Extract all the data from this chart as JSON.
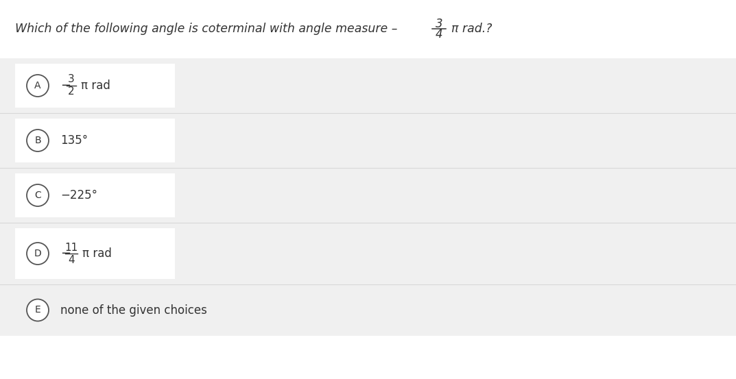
{
  "bg_color": "#ffffff",
  "row_bg_color": "#f0f0f0",
  "white_box_color": "#ffffff",
  "text_color": "#333333",
  "circle_bg": "#ffffff",
  "circle_edge": "#555555",
  "sep_color": "#d8d8d8",
  "question_main": "Which of the following angle is coterminal with angle measure –",
  "question_frac_num": "3",
  "question_frac_den": "4",
  "question_suffix": "π rad.?",
  "options": [
    {
      "label": "A",
      "type": "frac",
      "sign": "−",
      "num": "3",
      "den": "2",
      "suffix": "π rad"
    },
    {
      "label": "B",
      "type": "plain",
      "text": "135°"
    },
    {
      "label": "C",
      "type": "plain",
      "text": "−225°"
    },
    {
      "label": "D",
      "type": "frac",
      "sign": "−",
      "num": "11",
      "den": "4",
      "suffix": "π rad"
    },
    {
      "label": "E",
      "type": "plain",
      "text": "none of the given choices"
    }
  ],
  "fig_w": 10.73,
  "fig_h": 5.53,
  "dpi": 100
}
